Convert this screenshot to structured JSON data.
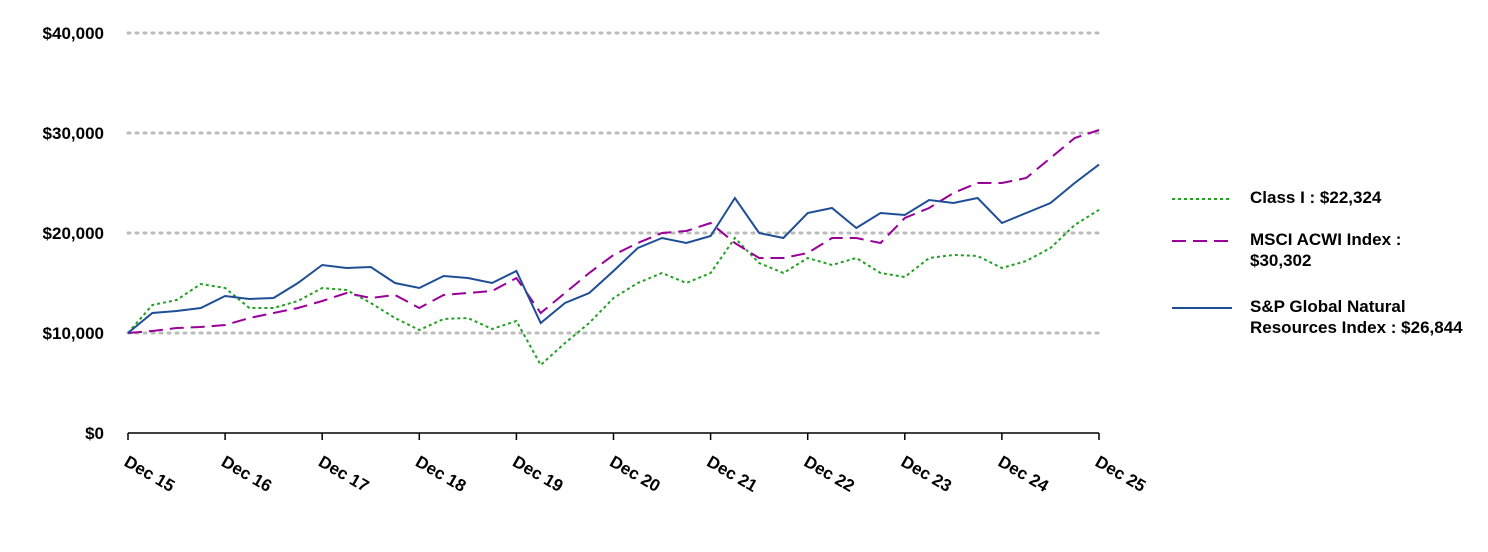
{
  "chart_data": {
    "type": "line",
    "categories": [
      "Dec 15",
      null,
      null,
      null,
      "Dec 16",
      null,
      null,
      null,
      "Dec 17",
      null,
      null,
      null,
      "Dec 18",
      null,
      null,
      null,
      "Dec 19",
      null,
      null,
      null,
      "Dec 20",
      null,
      null,
      null,
      "Dec 21",
      null,
      null,
      null,
      "Dec 22",
      null,
      null,
      null,
      "Dec 23",
      null,
      null,
      null,
      "Dec 24",
      null,
      null,
      null,
      "Dec 25"
    ],
    "series": [
      {
        "name": "Class I : $22,324",
        "color": "#22a022",
        "style": "dotted",
        "values": [
          10000,
          12800,
          13300,
          14900,
          14500,
          12500,
          12500,
          13200,
          14500,
          14300,
          13000,
          11500,
          10300,
          11400,
          11500,
          10400,
          11200,
          6800,
          9000,
          11000,
          13500,
          15000,
          16000,
          15000,
          16000,
          19500,
          17000,
          16000,
          17500,
          16800,
          17500,
          16000,
          15600,
          17500,
          17800,
          17700,
          16500,
          17200,
          18500,
          20800,
          22324
        ]
      },
      {
        "name": "MSCI ACWI Index : $30,302",
        "color": "#990099",
        "style": "dashed",
        "values": [
          10000,
          10200,
          10500,
          10600,
          10800,
          11500,
          12000,
          12500,
          13200,
          14000,
          13500,
          13800,
          12500,
          13800,
          14000,
          14200,
          15500,
          12000,
          14000,
          16000,
          17800,
          19000,
          20000,
          20200,
          21000,
          19000,
          17500,
          17500,
          18000,
          19500,
          19500,
          19000,
          21500,
          22500,
          24000,
          25000,
          25000,
          25500,
          27500,
          29500,
          30302
        ]
      },
      {
        "name": "S&P Global Natural Resources Index : $26,844",
        "color": "#1f4e96",
        "style": "solid",
        "values": [
          10000,
          12000,
          12200,
          12500,
          13700,
          13400,
          13500,
          15000,
          16800,
          16500,
          16600,
          15000,
          14500,
          15700,
          15500,
          15000,
          16200,
          11000,
          13000,
          14000,
          16200,
          18500,
          19500,
          19000,
          19700,
          23500,
          20000,
          19500,
          22000,
          22500,
          20500,
          22000,
          21800,
          23300,
          23000,
          23500,
          21000,
          22000,
          23000,
          25000,
          26844
        ]
      }
    ],
    "ylim": [
      0,
      40000
    ],
    "yticks": [
      {
        "value": 0,
        "label": "$0"
      },
      {
        "value": 10000,
        "label": "$10,000"
      },
      {
        "value": 20000,
        "label": "$20,000"
      },
      {
        "value": 30000,
        "label": "$30,000"
      },
      {
        "value": 40000,
        "label": "$40,000"
      }
    ],
    "grid": true,
    "legend": "right"
  }
}
